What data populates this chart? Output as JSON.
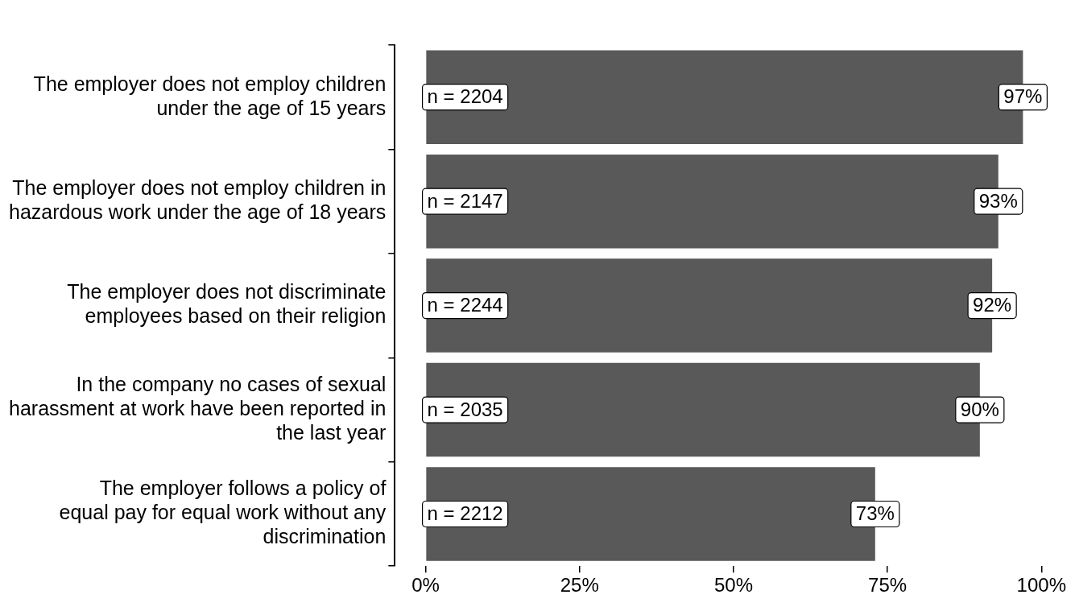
{
  "chart_data": {
    "type": "bar",
    "orientation": "horizontal",
    "categories": [
      "The employer does not employ children\nunder the age of 15 years",
      "The employer does not employ children in\nhazardous work under the age of 18 years",
      "The employer does not discriminate\nemployees based on their religion",
      "In the company no cases of sexual\nharassment at work have been reported in\nthe last year",
      "The employer follows a policy of\nequal pay for equal work without any\ndiscrimination"
    ],
    "values": [
      97,
      93,
      92,
      90,
      73
    ],
    "value_labels": [
      "97%",
      "93%",
      "92%",
      "90%",
      "73%"
    ],
    "color": "#595959",
    "xlim": [
      -5,
      100
    ],
    "xticks": [
      {
        "value": 0,
        "label": "0%"
      },
      {
        "value": 25,
        "label": "25%"
      },
      {
        "value": 50,
        "label": "50%"
      },
      {
        "value": 75,
        "label": "75%"
      },
      {
        "value": 100,
        "label": "100%"
      }
    ],
    "annotations": [
      "n = 2204",
      "n = 2147",
      "n = 2244",
      "n = 2035",
      "n = 2212"
    ],
    "grid": false,
    "legend": false
  }
}
